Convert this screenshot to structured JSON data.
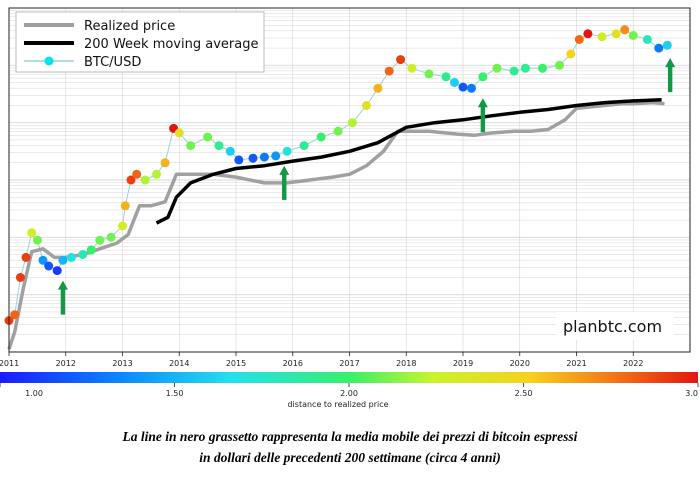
{
  "chart_data": {
    "type": "line",
    "title": "",
    "xlabel": "",
    "ylabel": "",
    "x_ticks": [
      "2011",
      "2012",
      "2013",
      "2014",
      "2015",
      "2016",
      "2017",
      "2018",
      "2019",
      "2020",
      "2021",
      "2022"
    ],
    "xlim": [
      2011.0,
      2023.0
    ],
    "ylim_log10": [
      0.0,
      5.0
    ],
    "y_scale": "log",
    "grid": true,
    "legend_position": "top-left",
    "series": [
      {
        "name": "Realized price",
        "color": "#a0a0a0",
        "points": [
          [
            2011.0,
            0.05
          ],
          [
            2011.1,
            0.35
          ],
          [
            2011.25,
            1.1
          ],
          [
            2011.4,
            1.75
          ],
          [
            2011.6,
            1.8
          ],
          [
            2011.8,
            1.65
          ],
          [
            2012.0,
            1.65
          ],
          [
            2012.3,
            1.7
          ],
          [
            2012.6,
            1.8
          ],
          [
            2012.9,
            1.9
          ],
          [
            2013.1,
            2.05
          ],
          [
            2013.3,
            2.55
          ],
          [
            2013.5,
            2.55
          ],
          [
            2013.75,
            2.62
          ],
          [
            2013.95,
            3.1
          ],
          [
            2014.2,
            3.1
          ],
          [
            2014.6,
            3.1
          ],
          [
            2015.0,
            3.05
          ],
          [
            2015.5,
            2.95
          ],
          [
            2015.9,
            2.95
          ],
          [
            2016.3,
            3.0
          ],
          [
            2016.7,
            3.05
          ],
          [
            2017.0,
            3.1
          ],
          [
            2017.3,
            3.25
          ],
          [
            2017.6,
            3.5
          ],
          [
            2017.85,
            3.85
          ],
          [
            2018.0,
            3.85
          ],
          [
            2018.4,
            3.85
          ],
          [
            2018.9,
            3.8
          ],
          [
            2019.2,
            3.78
          ],
          [
            2019.5,
            3.82
          ],
          [
            2019.9,
            3.85
          ],
          [
            2020.2,
            3.85
          ],
          [
            2020.5,
            3.88
          ],
          [
            2020.8,
            4.05
          ],
          [
            2021.0,
            4.25
          ],
          [
            2021.3,
            4.28
          ],
          [
            2021.8,
            4.33
          ],
          [
            2022.0,
            4.33
          ],
          [
            2022.35,
            4.35
          ],
          [
            2022.55,
            4.33
          ]
        ]
      },
      {
        "name": "200 Week moving average",
        "color": "#000000",
        "points": [
          [
            2013.6,
            2.25
          ],
          [
            2013.8,
            2.35
          ],
          [
            2013.95,
            2.7
          ],
          [
            2014.2,
            2.95
          ],
          [
            2014.6,
            3.1
          ],
          [
            2015.0,
            3.2
          ],
          [
            2015.5,
            3.25
          ],
          [
            2016.0,
            3.33
          ],
          [
            2016.5,
            3.4
          ],
          [
            2017.0,
            3.5
          ],
          [
            2017.5,
            3.65
          ],
          [
            2018.0,
            3.92
          ],
          [
            2018.5,
            4.0
          ],
          [
            2019.0,
            4.05
          ],
          [
            2019.5,
            4.12
          ],
          [
            2020.0,
            4.18
          ],
          [
            2020.5,
            4.23
          ],
          [
            2021.0,
            4.3
          ],
          [
            2021.5,
            4.35
          ],
          [
            2022.0,
            4.38
          ],
          [
            2022.5,
            4.4
          ]
        ]
      },
      {
        "name": "BTC/USD",
        "color": "#00e5ee",
        "marker": "circle",
        "points": [
          [
            2011.0,
            0.55,
            2.9
          ],
          [
            2011.1,
            0.65,
            2.8
          ],
          [
            2011.2,
            1.3,
            2.9
          ],
          [
            2011.3,
            1.65,
            2.9
          ],
          [
            2011.4,
            2.08,
            2.3
          ],
          [
            2011.5,
            1.95,
            2.1
          ],
          [
            2011.6,
            1.6,
            1.4
          ],
          [
            2011.7,
            1.5,
            1.2
          ],
          [
            2011.85,
            1.42,
            1.1
          ],
          [
            2011.95,
            1.6,
            1.5
          ],
          [
            2012.1,
            1.65,
            1.7
          ],
          [
            2012.3,
            1.7,
            1.8
          ],
          [
            2012.45,
            1.78,
            2.0
          ],
          [
            2012.6,
            1.95,
            2.1
          ],
          [
            2012.8,
            2.0,
            2.1
          ],
          [
            2013.0,
            2.2,
            2.3
          ],
          [
            2013.05,
            2.55,
            2.6
          ],
          [
            2013.15,
            3.0,
            2.9
          ],
          [
            2013.25,
            3.1,
            2.8
          ],
          [
            2013.4,
            3.0,
            2.2
          ],
          [
            2013.6,
            3.1,
            2.2
          ],
          [
            2013.75,
            3.3,
            2.6
          ],
          [
            2013.9,
            3.9,
            3.0
          ],
          [
            2014.0,
            3.82,
            2.4
          ],
          [
            2014.2,
            3.6,
            2.1
          ],
          [
            2014.5,
            3.75,
            2.1
          ],
          [
            2014.7,
            3.6,
            1.9
          ],
          [
            2014.9,
            3.5,
            1.6
          ],
          [
            2015.05,
            3.35,
            1.2
          ],
          [
            2015.3,
            3.38,
            1.2
          ],
          [
            2015.5,
            3.4,
            1.3
          ],
          [
            2015.7,
            3.42,
            1.4
          ],
          [
            2015.9,
            3.5,
            1.7
          ],
          [
            2016.2,
            3.6,
            1.9
          ],
          [
            2016.5,
            3.75,
            2.0
          ],
          [
            2016.8,
            3.85,
            2.1
          ],
          [
            2017.05,
            4.0,
            2.2
          ],
          [
            2017.3,
            4.3,
            2.4
          ],
          [
            2017.5,
            4.6,
            2.6
          ],
          [
            2017.7,
            4.9,
            2.8
          ],
          [
            2017.9,
            5.1,
            2.9
          ],
          [
            2018.1,
            4.95,
            2.3
          ],
          [
            2018.4,
            4.85,
            2.1
          ],
          [
            2018.7,
            4.8,
            1.9
          ],
          [
            2018.85,
            4.7,
            1.6
          ],
          [
            2019.0,
            4.62,
            1.2
          ],
          [
            2019.15,
            4.6,
            1.3
          ],
          [
            2019.35,
            4.8,
            2.0
          ],
          [
            2019.6,
            4.95,
            2.1
          ],
          [
            2019.9,
            4.9,
            1.9
          ],
          [
            2020.1,
            4.95,
            1.9
          ],
          [
            2020.4,
            4.95,
            2.0
          ],
          [
            2020.7,
            5.0,
            2.1
          ],
          [
            2020.9,
            5.2,
            2.5
          ],
          [
            2021.05,
            5.45,
            2.8
          ],
          [
            2021.2,
            5.55,
            3.0
          ],
          [
            2021.45,
            5.5,
            2.3
          ],
          [
            2021.7,
            5.55,
            2.4
          ],
          [
            2021.85,
            5.62,
            2.7
          ],
          [
            2022.0,
            5.52,
            2.1
          ],
          [
            2022.25,
            5.45,
            1.8
          ],
          [
            2022.45,
            5.3,
            1.3
          ],
          [
            2022.6,
            5.35,
            1.6
          ]
        ]
      }
    ],
    "arrows_at_x": [
      2011.95,
      2015.85,
      2019.35,
      2022.65
    ],
    "colorbar": {
      "range": [
        1.0,
        3.0
      ],
      "ticks": [
        "1.00",
        "1.50",
        "2.00",
        "2.50",
        "3.0"
      ],
      "label": "distance to realized price"
    },
    "annotation": "planbtc.com"
  },
  "colors": {
    "realized": "#a0a0a0",
    "ma200": "#000000",
    "btc_line": "#9ad4d4",
    "arrow": "#119944",
    "grid": "#d6d6d6"
  },
  "caption": {
    "line1": "La line in nero grassetto rappresenta la media mobile dei prezzi di bitcoin espressi",
    "line2": "in dollari delle precedenti 200 settimane (circa 4 anni)"
  }
}
